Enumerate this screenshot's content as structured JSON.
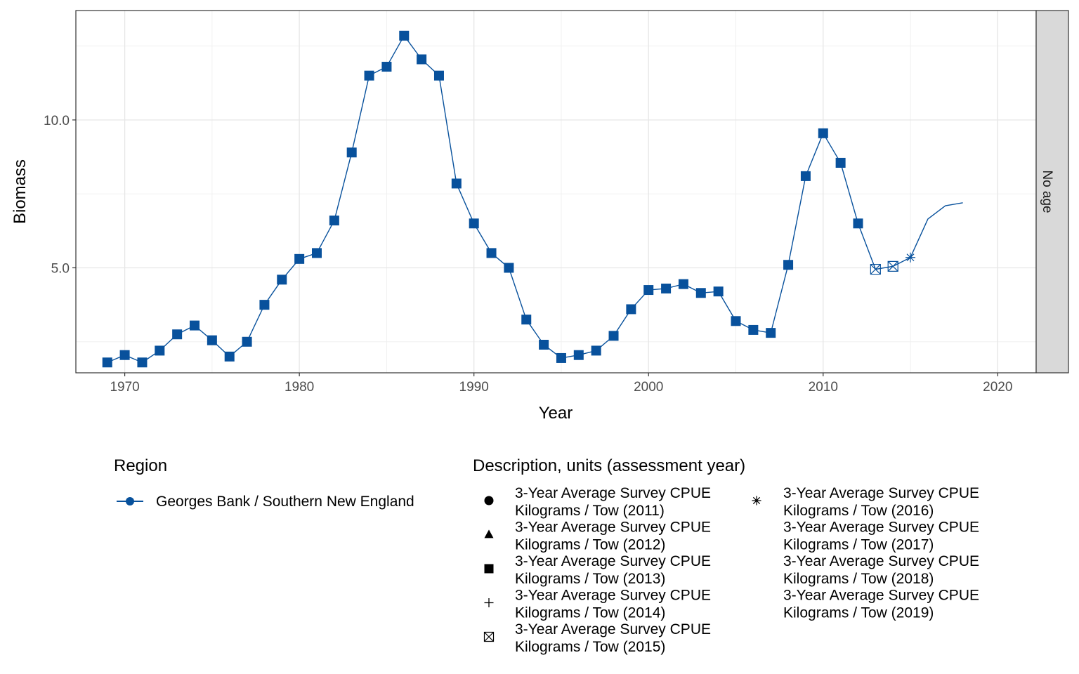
{
  "chart_data": {
    "type": "line",
    "xlabel": "Year",
    "ylabel": "Biomass",
    "xlim": [
      1967.2,
      2022.2
    ],
    "ylim": [
      1.45,
      13.7
    ],
    "x_ticks": [
      1970,
      1980,
      1990,
      2000,
      2010,
      2020
    ],
    "x_tick_labels": [
      "1970",
      "1980",
      "1990",
      "2000",
      "2010",
      "2020"
    ],
    "y_ticks": [
      5.0,
      10.0
    ],
    "y_tick_labels": [
      "5.0",
      "10.0"
    ],
    "grid": true,
    "facet_label": "No age",
    "series": [
      {
        "name": "Georges Bank / Southern New England",
        "color": "#08519c",
        "x": [
          1969,
          1970,
          1971,
          1972,
          1973,
          1974,
          1975,
          1976,
          1977,
          1978,
          1979,
          1980,
          1981,
          1982,
          1983,
          1984,
          1985,
          1986,
          1987,
          1988,
          1989,
          1990,
          1991,
          1992,
          1993,
          1994,
          1995,
          1996,
          1997,
          1998,
          1999,
          2000,
          2001,
          2002,
          2003,
          2004,
          2005,
          2006,
          2007,
          2008,
          2009,
          2010,
          2011,
          2012,
          2013,
          2014,
          2015,
          2016,
          2017,
          2018
        ],
        "y": [
          1.8,
          2.05,
          1.8,
          2.2,
          2.75,
          3.05,
          2.55,
          2.0,
          2.5,
          3.75,
          4.6,
          5.3,
          5.5,
          6.6,
          8.9,
          11.5,
          11.8,
          12.85,
          12.05,
          11.5,
          7.85,
          6.5,
          5.5,
          5.0,
          3.25,
          2.4,
          1.95,
          2.05,
          2.2,
          2.7,
          3.6,
          4.25,
          4.3,
          4.45,
          4.15,
          4.2,
          3.2,
          2.9,
          2.8,
          5.1,
          8.1,
          9.55,
          8.55,
          6.5,
          4.95,
          5.05,
          5.35,
          6.65,
          7.1,
          7.2
        ],
        "markers": [
          "square",
          "square",
          "square",
          "square",
          "square",
          "square",
          "square",
          "square",
          "square",
          "square",
          "square",
          "square",
          "square",
          "square",
          "square",
          "square",
          "square",
          "square",
          "square",
          "square",
          "square",
          "square",
          "square",
          "square",
          "square",
          "square",
          "square",
          "square",
          "square",
          "square",
          "square",
          "square",
          "square",
          "square",
          "square",
          "square",
          "square",
          "square",
          "square",
          "square",
          "square",
          "square",
          "square",
          "square",
          "boxx",
          "boxx",
          "asterisk",
          "none",
          "none",
          "none"
        ]
      }
    ],
    "legend": {
      "region_title": "Region",
      "region_entries": [
        "Georges Bank / Southern New England"
      ],
      "description_title": "Description, units (assessment year)",
      "description_entries": [
        {
          "line1": "3-Year Average Survey CPUE",
          "line2": "Kilograms / Tow (2011)",
          "shape": "circle"
        },
        {
          "line1": "3-Year Average Survey CPUE",
          "line2": "Kilograms / Tow (2012)",
          "shape": "triangle"
        },
        {
          "line1": "3-Year Average Survey CPUE",
          "line2": "Kilograms / Tow (2013)",
          "shape": "square"
        },
        {
          "line1": "3-Year Average Survey CPUE",
          "line2": "Kilograms / Tow (2014)",
          "shape": "plus"
        },
        {
          "line1": "3-Year Average Survey CPUE",
          "line2": "Kilograms / Tow (2015)",
          "shape": "boxx"
        },
        {
          "line1": "3-Year Average Survey CPUE",
          "line2": "Kilograms / Tow (2016)",
          "shape": "asterisk"
        },
        {
          "line1": "3-Year Average Survey CPUE",
          "line2": "Kilograms / Tow (2017)",
          "shape": "none"
        },
        {
          "line1": "3-Year Average Survey CPUE",
          "line2": "Kilograms / Tow (2018)",
          "shape": "none"
        },
        {
          "line1": "3-Year Average Survey CPUE",
          "line2": "Kilograms / Tow (2019)",
          "shape": "none"
        }
      ]
    }
  }
}
